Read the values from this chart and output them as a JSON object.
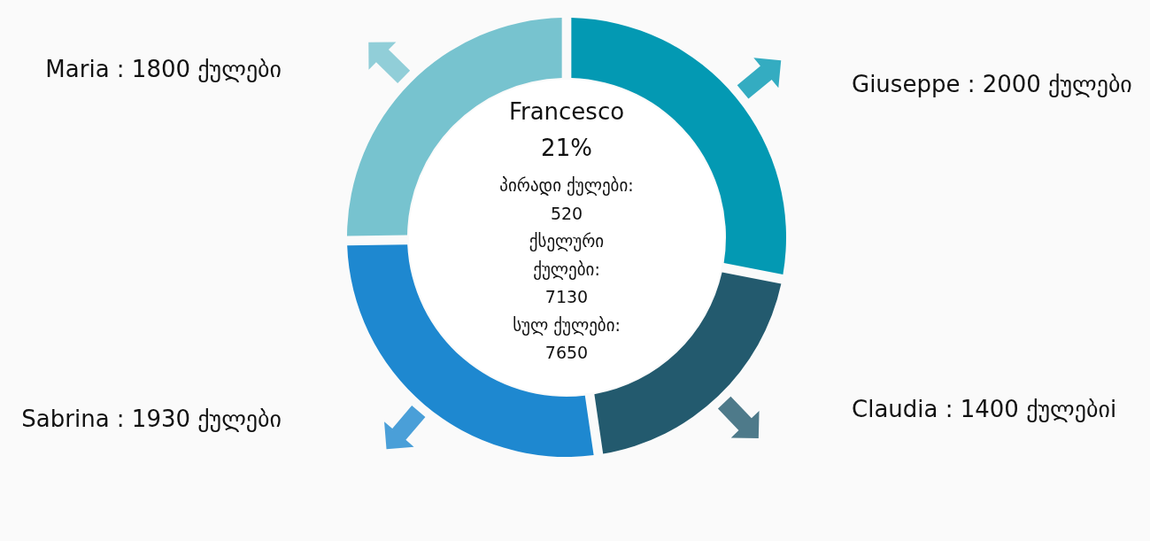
{
  "chart_data": {
    "type": "donut",
    "title": "Francesco",
    "annotations": [
      "21%",
      "პირადი ქულები:\n520",
      "ქსელური\nქულები:\n7130",
      "სულ ქულები:\n7650"
    ],
    "categories": [
      "Giuseppe",
      "Claudia",
      "Sabrina",
      "Maria"
    ],
    "values": [
      2000,
      1400,
      1930,
      1800
    ],
    "value_labels": [
      "2000 ქულები",
      "1400 ქულებიi",
      "1930 ქულები",
      "1800 ქულები"
    ],
    "colors": [
      "#0399b3",
      "#235a6e",
      "#1e88d0",
      "#77c3cf"
    ]
  }
}
